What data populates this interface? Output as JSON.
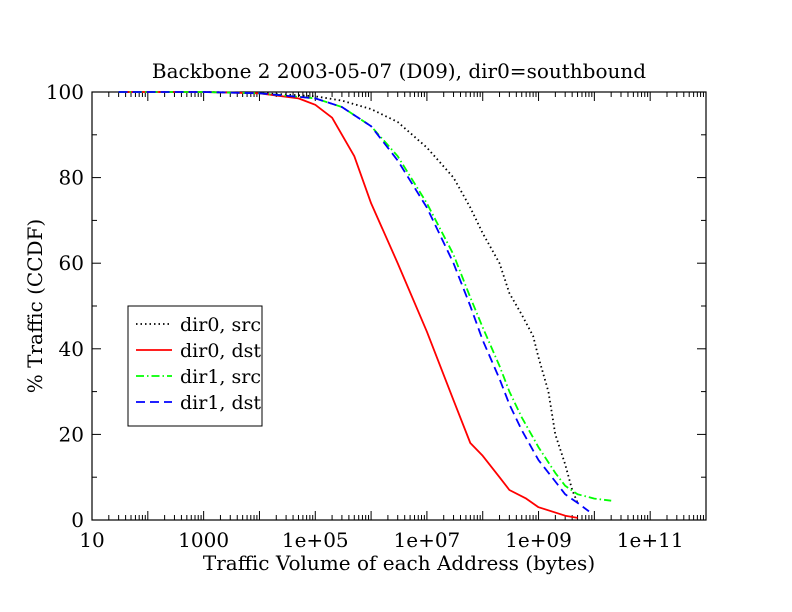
{
  "chart_data": {
    "type": "line",
    "title": "Backbone 2 2003-05-07 (D09), dir0=southbound",
    "xlabel": "Traffic Volume of each Address (bytes)",
    "ylabel": "% Traffic (CCDF)",
    "xscale": "log",
    "xlim": [
      10,
      1000000000000.0
    ],
    "ylim": [
      0,
      100
    ],
    "x_ticks": [
      {
        "value": 10,
        "label": "10"
      },
      {
        "value": 1000,
        "label": "1000"
      },
      {
        "value": 100000,
        "label": "1e+05"
      },
      {
        "value": 10000000,
        "label": "1e+07"
      },
      {
        "value": 1000000000,
        "label": "1e+09"
      },
      {
        "value": 100000000000,
        "label": "1e+11"
      }
    ],
    "y_ticks": [
      {
        "value": 0,
        "label": "0"
      },
      {
        "value": 20,
        "label": "20"
      },
      {
        "value": 40,
        "label": "40"
      },
      {
        "value": 60,
        "label": "60"
      },
      {
        "value": 80,
        "label": "80"
      },
      {
        "value": 100,
        "label": "100"
      }
    ],
    "grid": false,
    "legend_position": "left-middle",
    "series": [
      {
        "name": "dir0, src",
        "color": "#000000",
        "dash": "dotted",
        "x": [
          30,
          1000,
          10000,
          100000,
          300000,
          1000000,
          3000000,
          10000000,
          30000000,
          60000000,
          100000000,
          200000000,
          300000000,
          500000000,
          800000000,
          1000000000,
          1500000000,
          2000000000,
          3000000000,
          4000000000,
          5000000000
        ],
        "y": [
          100,
          100,
          99.8,
          99,
          98,
          96,
          93,
          87,
          80,
          73,
          67,
          60,
          53,
          48,
          43,
          38,
          30,
          20,
          13,
          7,
          4
        ]
      },
      {
        "name": "dir0, dst",
        "color": "#ff0000",
        "dash": "solid",
        "x": [
          30,
          1000,
          10000,
          50000,
          100000,
          200000,
          500000,
          1000000,
          3000000,
          10000000,
          30000000,
          60000000,
          100000000,
          200000000,
          300000000,
          600000000,
          1000000000,
          3000000000,
          5000000000
        ],
        "y": [
          100,
          100,
          99.7,
          98.5,
          97,
          94,
          85,
          74,
          60,
          44,
          28,
          18,
          15,
          10,
          7,
          5,
          3,
          1,
          0.5
        ]
      },
      {
        "name": "dir1, src",
        "color": "#00ff00",
        "dash": "dashdot",
        "x": [
          30,
          1000,
          10000,
          100000,
          300000,
          1000000,
          3000000,
          10000000,
          30000000,
          60000000,
          100000000,
          200000000,
          300000000,
          500000000,
          1000000000,
          2000000000,
          3000000000,
          5000000000,
          10000000000,
          20000000000
        ],
        "y": [
          100,
          100,
          99.7,
          98.5,
          96.5,
          92,
          85,
          74,
          62,
          52,
          45,
          36,
          30,
          24,
          17,
          11,
          8,
          6,
          5,
          4.5
        ]
      },
      {
        "name": "dir1, dst",
        "color": "#0000ff",
        "dash": "dashed",
        "x": [
          30,
          1000,
          10000,
          100000,
          300000,
          1000000,
          3000000,
          10000000,
          30000000,
          60000000,
          100000000,
          200000000,
          300000000,
          500000000,
          1000000000,
          2000000000,
          3000000000,
          5000000000,
          8000000000
        ],
        "y": [
          100,
          100,
          99.7,
          98.5,
          96.5,
          92,
          84,
          73,
          60,
          50,
          42,
          33,
          27,
          21,
          14,
          9,
          6,
          4,
          2
        ]
      }
    ]
  }
}
